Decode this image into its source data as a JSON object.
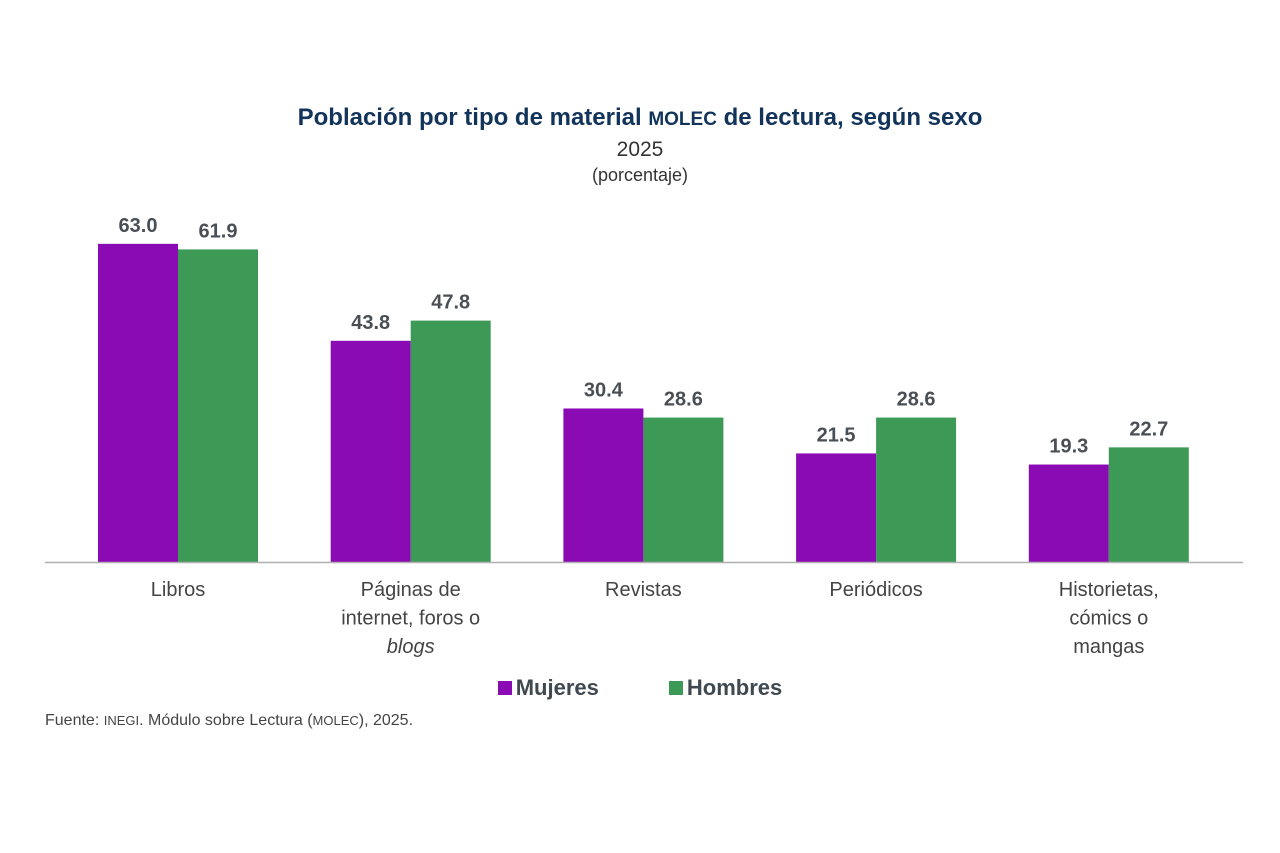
{
  "title_parts": [
    "Población por tipo de material ",
    "MOLEC",
    " de lectura, según sexo"
  ],
  "year": "2025",
  "unit": "(porcentaje)",
  "source_parts": [
    "Fuente: ",
    "INEGI",
    ". Módulo sobre Lectura (",
    "MOLEC",
    "), 2025."
  ],
  "chart_data": {
    "type": "bar",
    "title": "Población por tipo de material MOLEC de lectura, según sexo",
    "subtitle": "2025 (porcentaje)",
    "categories": [
      "Libros",
      "Páginas de internet, foros o blogs",
      "Revistas",
      "Periódicos",
      "Historietas, cómics o mangas"
    ],
    "category_lines": [
      [
        "Libros"
      ],
      [
        "Páginas de",
        "internet, foros o",
        "blogs"
      ],
      [
        "Revistas"
      ],
      [
        "Periódicos"
      ],
      [
        "Historietas,",
        "cómics o",
        "mangas"
      ]
    ],
    "italic_term": "blogs",
    "series": [
      {
        "name": "Mujeres",
        "color": "#8a0ab4",
        "values": [
          63.0,
          43.8,
          30.4,
          21.5,
          19.3
        ]
      },
      {
        "name": "Hombres",
        "color": "#3d9a56",
        "values": [
          61.9,
          47.8,
          28.6,
          28.6,
          22.7
        ]
      }
    ],
    "ylim": [
      0,
      70
    ],
    "grid": false,
    "data_labels": true,
    "legend_position": "bottom"
  }
}
